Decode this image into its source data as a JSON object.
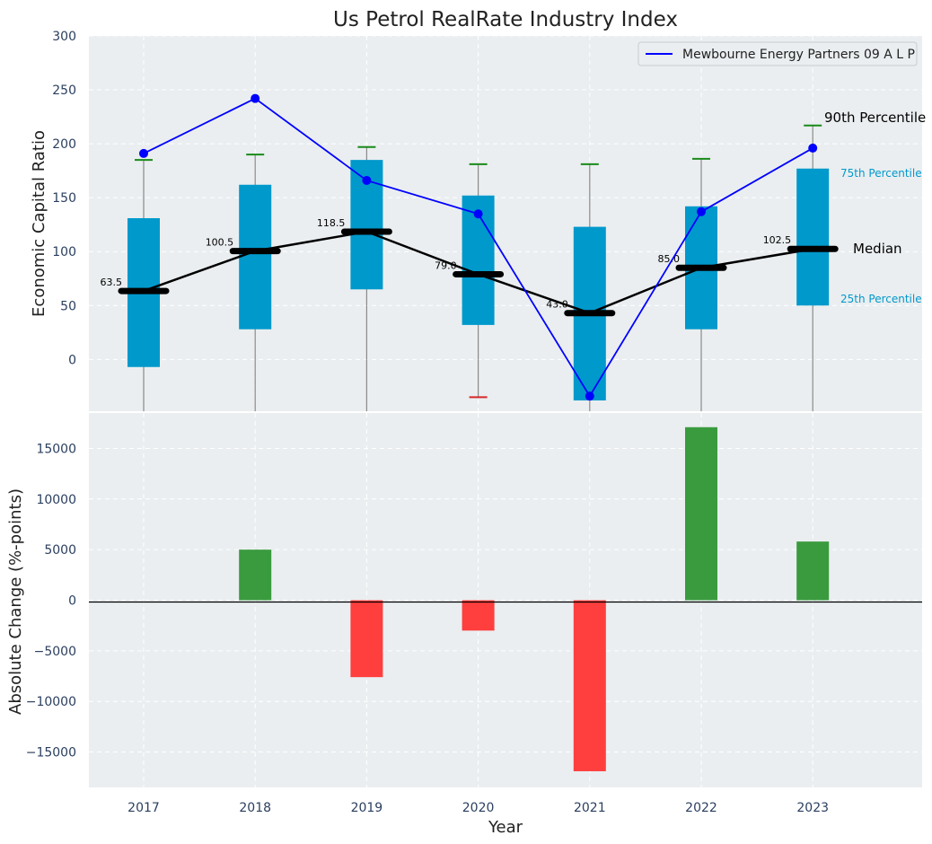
{
  "chart_data": {
    "type": "box+bar",
    "title": "Us Petrol RealRate Industry Index",
    "xlabel": "Year",
    "categories": [
      "2017",
      "2018",
      "2019",
      "2020",
      "2021",
      "2022",
      "2023"
    ],
    "top": {
      "type": "box",
      "ylabel": "Economic Capital Ratio",
      "ylim": [
        -48,
        300
      ],
      "yticks": [
        0,
        50,
        100,
        150,
        200,
        250,
        300
      ],
      "grid": true,
      "legend_position": "top-right",
      "boxes": [
        {
          "p10": -48,
          "p25": -7,
          "median": 63.5,
          "p75": 131,
          "p90": 185,
          "median_label": "63.5",
          "p10_color": "#2ca02c"
        },
        {
          "p10": -48,
          "p25": 28,
          "median": 100.5,
          "p75": 162,
          "p90": 190,
          "median_label": "100.5",
          "p10_color": "#2ca02c"
        },
        {
          "p10": -48,
          "p25": 65,
          "median": 118.5,
          "p75": 185,
          "p90": 197,
          "median_label": "118.5",
          "p10_color": "#2ca02c"
        },
        {
          "p10": -35,
          "p25": 32,
          "median": 79.0,
          "p75": 152,
          "p90": 181,
          "median_label": "79.0",
          "p10_color": "#d62728"
        },
        {
          "p10": -48,
          "p25": -38,
          "median": 43.0,
          "p75": 123,
          "p90": 181,
          "median_label": "43.0",
          "p10_color": "#2ca02c"
        },
        {
          "p10": -48,
          "p25": 28,
          "median": 85.0,
          "p75": 142,
          "p90": 186,
          "median_label": "85.0",
          "p10_color": "#2ca02c"
        },
        {
          "p10": -48,
          "p25": 50,
          "median": 102.5,
          "p75": 177,
          "p90": 217,
          "median_label": "102.5",
          "p10_color": "#2ca02c"
        }
      ],
      "series": [
        {
          "name": "Mewbourne Energy Partners 09 A L P",
          "color": "#0000ff",
          "values": [
            191,
            242,
            166,
            135,
            -34,
            137,
            196
          ]
        }
      ],
      "annotations": {
        "p90": "90th Percentile",
        "p75": "75th Percentile",
        "median": "Median",
        "p25": "25th Percentile"
      }
    },
    "bottom": {
      "type": "bar",
      "ylabel": "Absolute Change (%-points)",
      "ylim": [
        -18500,
        18500
      ],
      "yticks": [
        -15000,
        -10000,
        -5000,
        0,
        5000,
        10000,
        15000
      ],
      "ytick_labels": [
        "−15000",
        "−10000",
        "−5000",
        "0",
        "5000",
        "10000",
        "15000"
      ],
      "grid": true,
      "values": [
        0,
        5000,
        -7600,
        -3000,
        -16900,
        17100,
        5800
      ],
      "pos_color": "#3a9b3e",
      "neg_color": "#ff3e3e"
    },
    "colors": {
      "plot_bg": "#eaeef0",
      "box": "#0099cc",
      "whisker": "#8a8a8a",
      "median": "#000000",
      "axis_text": "#2a3f5f"
    }
  }
}
